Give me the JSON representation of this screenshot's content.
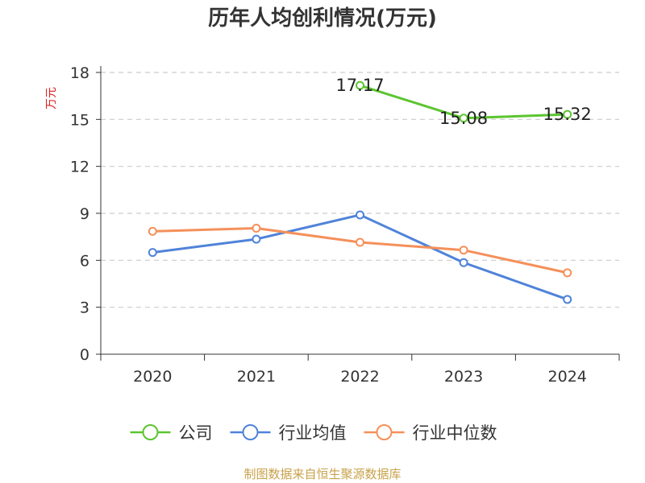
{
  "chart_data": {
    "type": "line",
    "title": "历年人均创利情况(万元)",
    "ylabel": "万元",
    "source": "制图数据来自恒生聚源数据库",
    "categories": [
      "2020",
      "2021",
      "2022",
      "2023",
      "2024"
    ],
    "ylim": [
      0,
      18
    ],
    "yticks": [
      "0",
      "3",
      "6",
      "9",
      "12",
      "15",
      "18"
    ],
    "grid": true,
    "legend_position": "bottom",
    "series": [
      {
        "name": "公司",
        "color": "#5cc530",
        "values": [
          null,
          null,
          17.17,
          15.08,
          15.32
        ],
        "labels": [
          "",
          "",
          "17.17",
          "15.08",
          "15.32"
        ]
      },
      {
        "name": "行业均值",
        "color": "#4f83d9",
        "values": [
          6.5,
          7.35,
          8.9,
          5.85,
          3.5
        ],
        "labels": [
          "",
          "",
          "",
          "",
          ""
        ]
      },
      {
        "name": "行业中位数",
        "color": "#f5905a",
        "values": [
          7.85,
          8.05,
          7.15,
          6.65,
          5.2
        ],
        "labels": [
          "",
          "",
          "",
          "",
          ""
        ]
      }
    ]
  }
}
